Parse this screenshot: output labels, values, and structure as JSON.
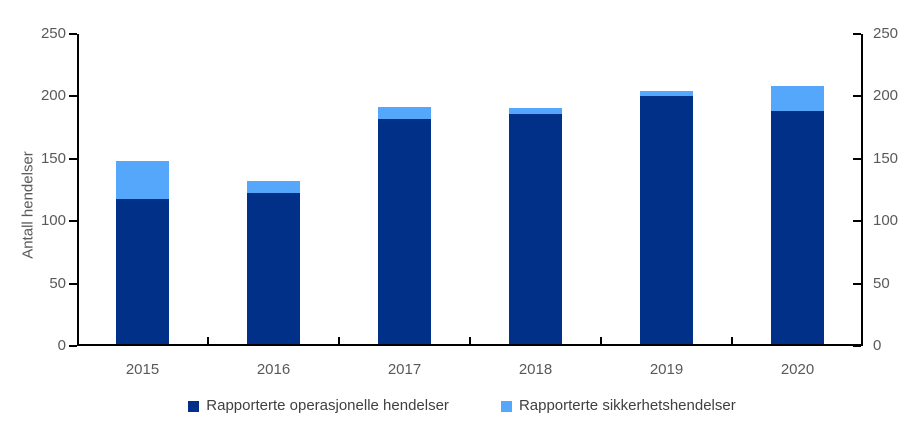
{
  "chart_data": {
    "type": "bar",
    "stacked": true,
    "title": "",
    "categories": [
      "2015",
      "2016",
      "2017",
      "2018",
      "2019",
      "2020"
    ],
    "series": [
      {
        "name": "Rapporterte operasjonelle hendelser",
        "color": "#003087",
        "values": [
          116,
          121,
          180,
          184,
          199,
          187
        ]
      },
      {
        "name": "Rapporterte sikkerhetshendelser",
        "color": "#55a7fb",
        "values": [
          31,
          10,
          10,
          5,
          4,
          20
        ]
      }
    ],
    "totals": [
      147,
      131,
      190,
      189,
      203,
      207
    ],
    "xlabel": "",
    "ylabel": "Antall hendelser",
    "ylim": [
      0,
      250
    ],
    "yticks": [
      0,
      50,
      100,
      150,
      200,
      250
    ],
    "right_axis": true,
    "grid": false,
    "legend_position": "bottom",
    "axis_color": "#000000",
    "tick_label_color": "#595959",
    "legend_text_color": "#404040",
    "background_color": "#ffffff"
  }
}
